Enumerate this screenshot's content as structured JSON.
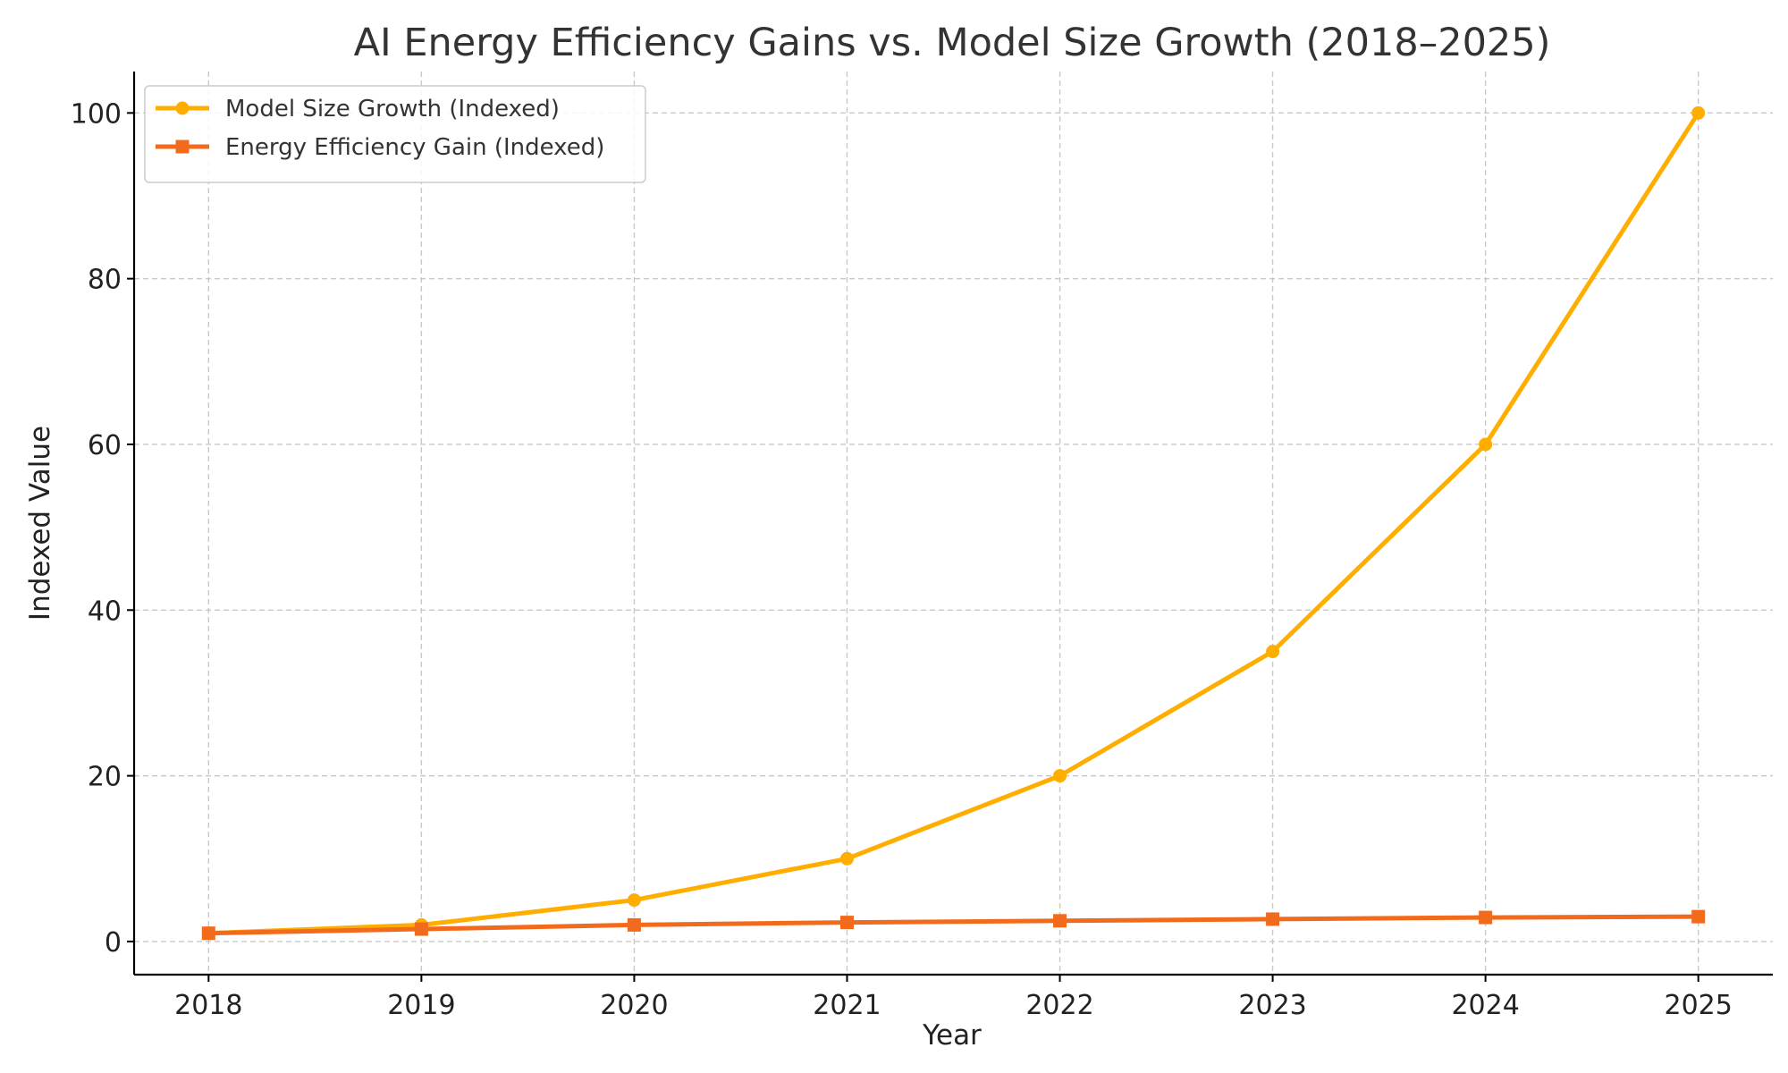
{
  "chart_data": {
    "type": "line",
    "title": "AI Energy Efficiency Gains vs. Model Size Growth (2018–2025)",
    "xlabel": "Year",
    "ylabel": "Indexed Value",
    "x": [
      "2018",
      "2019",
      "2020",
      "2021",
      "2022",
      "2023",
      "2024",
      "2025"
    ],
    "xlim": [
      2017.65,
      2025.35
    ],
    "ylim": [
      -4,
      105
    ],
    "yticks": [
      0,
      20,
      40,
      60,
      80,
      100
    ],
    "grid": true,
    "legend_position": "top-left",
    "series": [
      {
        "name": "Model Size Growth (Indexed)",
        "values": [
          1,
          2,
          5,
          10,
          20,
          35,
          60,
          100
        ],
        "color": "#FFAE00",
        "marker": "circle"
      },
      {
        "name": "Energy Efficiency Gain (Indexed)",
        "values": [
          1,
          1.5,
          2,
          2.3,
          2.5,
          2.7,
          2.9,
          3
        ],
        "color": "#F26B1D",
        "marker": "square"
      }
    ]
  }
}
